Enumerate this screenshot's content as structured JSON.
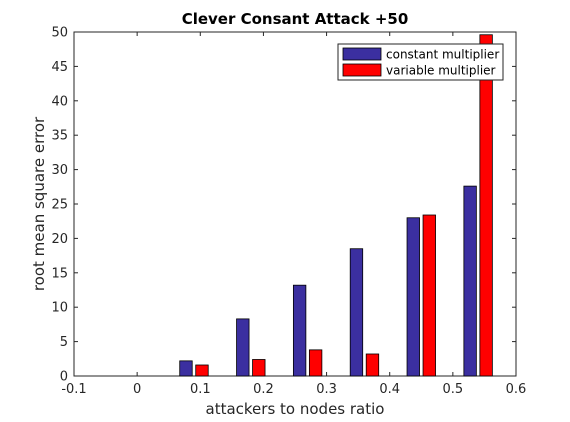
{
  "chart_data": {
    "type": "bar",
    "title": "Clever Consant Attack +50",
    "xlabel": "attackers to nodes ratio",
    "ylabel": "root mean square error",
    "xlim": [
      -0.1,
      0.6
    ],
    "ylim": [
      0,
      50
    ],
    "xticks": [
      "-0.1",
      "0",
      "0.1",
      "0.2",
      "0.3",
      "0.4",
      "0.5",
      "0.6"
    ],
    "yticks": [
      "0",
      "5",
      "10",
      "15",
      "20",
      "25",
      "30",
      "35",
      "40",
      "45",
      "50"
    ],
    "x": [
      0.09,
      0.18,
      0.27,
      0.36,
      0.45,
      0.54
    ],
    "series": [
      {
        "name": "constant multiplier",
        "color": "#3b2fa0",
        "values": [
          2.2,
          8.3,
          13.2,
          18.5,
          23.0,
          27.6
        ]
      },
      {
        "name": "variable multiplier",
        "color": "#ff0000",
        "values": [
          1.6,
          2.4,
          3.8,
          3.2,
          23.4,
          49.6
        ]
      }
    ],
    "legend_position": "top-right",
    "grid": false
  }
}
